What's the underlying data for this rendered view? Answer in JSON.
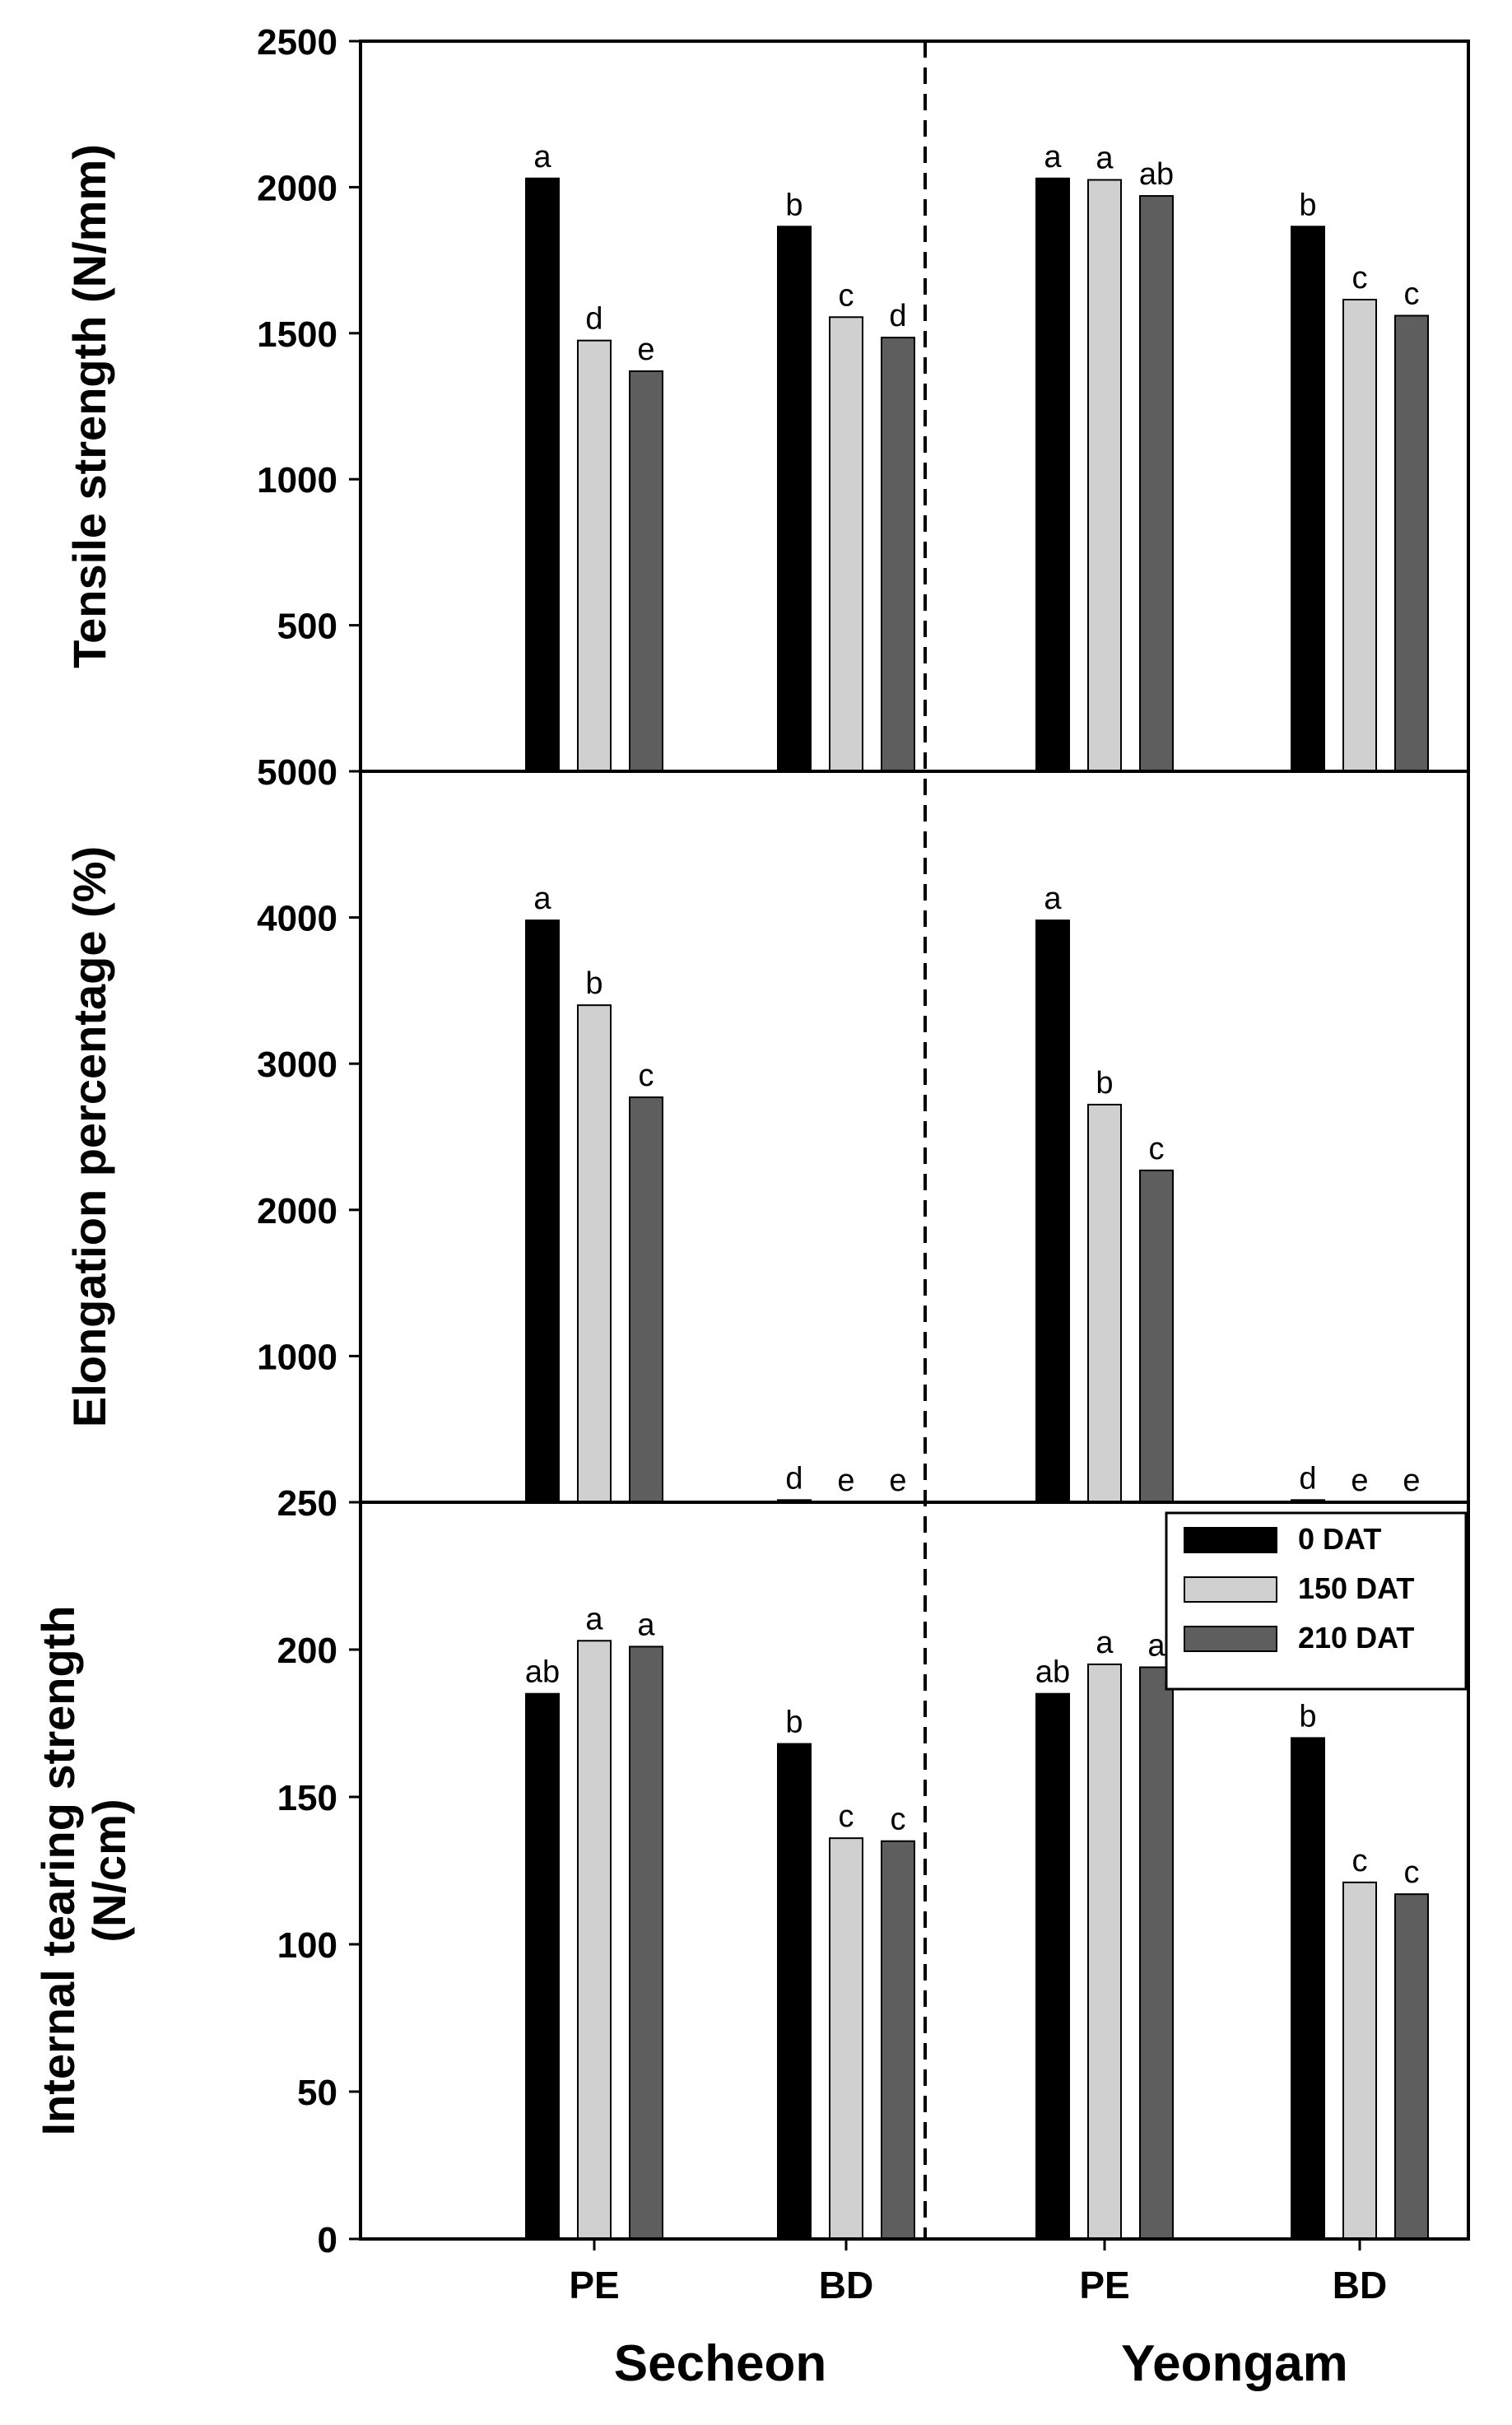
{
  "figure": {
    "groups": [
      "Secheon",
      "Yeongam"
    ],
    "treatments": [
      "PE",
      "BD",
      "PE",
      "BD"
    ],
    "legend": [
      "0 DAT",
      "150 DAT",
      "210 DAT"
    ],
    "colors": {
      "0 DAT": "#000000",
      "150 DAT": "#d0d0d0",
      "210 DAT": "#5e5e5e"
    }
  },
  "chart_data": [
    {
      "type": "bar",
      "ylabel": "Tensile strength (N/mm)",
      "ylim": [
        0,
        2500
      ],
      "yticks": [
        "500",
        "1000",
        "1500",
        "2000",
        "2500"
      ],
      "categories": [
        "Secheon PE",
        "Secheon BD",
        "Yeongam PE",
        "Yeongam BD"
      ],
      "series": [
        {
          "name": "0 DAT",
          "values": [
            2030,
            1865,
            2030,
            1865
          ]
        },
        {
          "name": "150 DAT",
          "values": [
            1475,
            1555,
            2025,
            1615
          ]
        },
        {
          "name": "210 DAT",
          "values": [
            1370,
            1485,
            1970,
            1560
          ]
        }
      ],
      "letters": [
        [
          "a",
          "d",
          "e"
        ],
        [
          "b",
          "c",
          "d"
        ],
        [
          "a",
          "a",
          "ab"
        ],
        [
          "b",
          "c",
          "c"
        ]
      ]
    },
    {
      "type": "bar",
      "ylabel": "Elongation percentage (%)",
      "ylim": [
        0,
        5000
      ],
      "yticks": [
        "1000",
        "2000",
        "3000",
        "4000",
        "5000"
      ],
      "categories": [
        "Secheon PE",
        "Secheon BD",
        "Yeongam PE",
        "Yeongam BD"
      ],
      "series": [
        {
          "name": "0 DAT",
          "values": [
            3980,
            15,
            3980,
            15
          ]
        },
        {
          "name": "150 DAT",
          "values": [
            3400,
            0,
            2720,
            0
          ]
        },
        {
          "name": "210 DAT",
          "values": [
            2770,
            0,
            2270,
            0
          ]
        }
      ],
      "letters": [
        [
          "a",
          "b",
          "c"
        ],
        [
          "d",
          "e",
          "e"
        ],
        [
          "a",
          "b",
          "c"
        ],
        [
          "d",
          "e",
          "e"
        ]
      ]
    },
    {
      "type": "bar",
      "ylabel": "Internal tearing strength (N/cm)",
      "ylim": [
        0,
        250
      ],
      "yticks": [
        "0",
        "50",
        "100",
        "150",
        "200",
        "250"
      ],
      "categories": [
        "Secheon PE",
        "Secheon BD",
        "Yeongam PE",
        "Yeongam BD"
      ],
      "series": [
        {
          "name": "0 DAT",
          "values": [
            185,
            168,
            185,
            170
          ]
        },
        {
          "name": "150 DAT",
          "values": [
            203,
            136,
            195,
            121
          ]
        },
        {
          "name": "210 DAT",
          "values": [
            201,
            135,
            194,
            117
          ]
        }
      ],
      "letters": [
        [
          "ab",
          "a",
          "a"
        ],
        [
          "b",
          "c",
          "c"
        ],
        [
          "ab",
          "a",
          "a"
        ],
        [
          "b",
          "c",
          "c"
        ]
      ]
    }
  ]
}
